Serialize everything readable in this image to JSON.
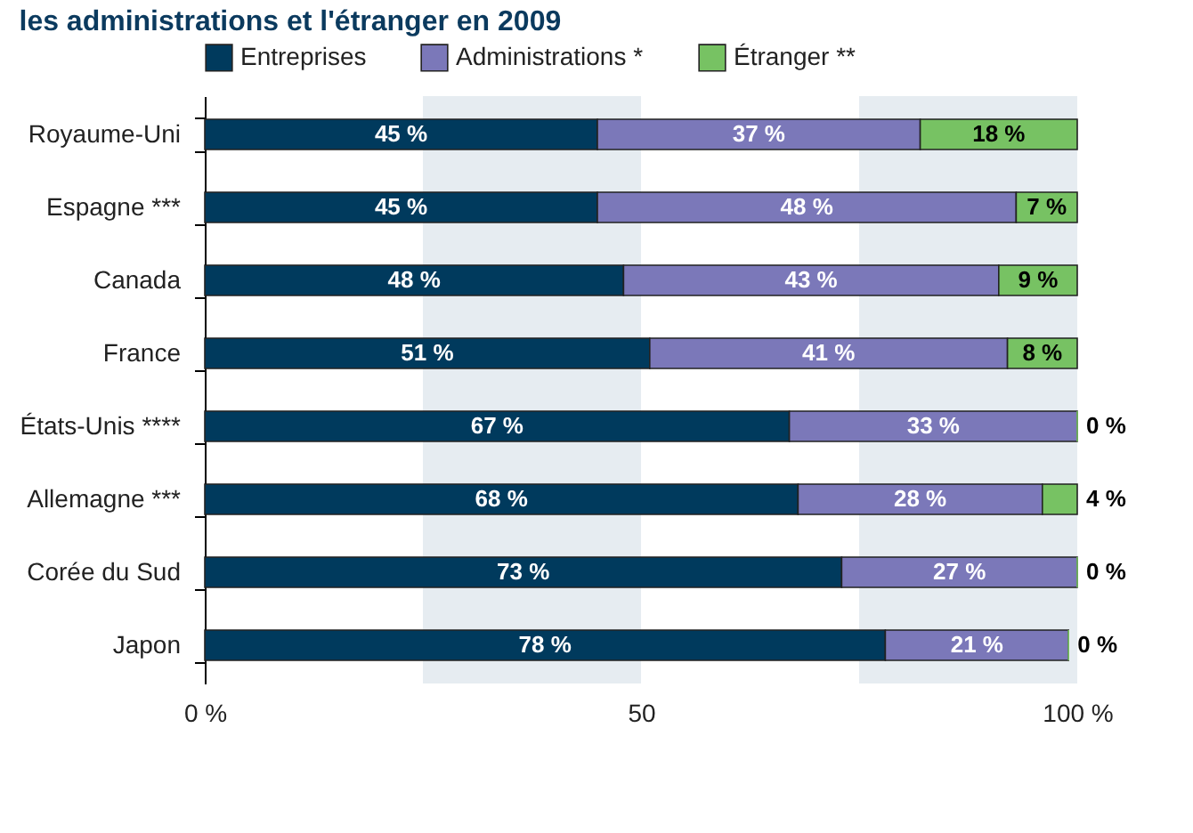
{
  "chart_data": {
    "type": "bar",
    "orientation": "horizontal",
    "stacked": true,
    "title": "les administrations et l'étranger en 2009",
    "categories": [
      "Royaume-Uni",
      "Espagne ***",
      "Canada",
      "France",
      "États-Unis ****",
      "Allemagne ***",
      "Corée du Sud",
      "Japon"
    ],
    "series": [
      {
        "name": "Entreprises",
        "color": "#003a5d",
        "values": [
          45,
          45,
          48,
          51,
          67,
          68,
          73,
          78
        ],
        "value_labels": [
          "45 %",
          "45 %",
          "48 %",
          "51 %",
          "67 %",
          "68 %",
          "73 %",
          "78 %"
        ]
      },
      {
        "name": "Administrations *",
        "color": "#7b78b9",
        "values": [
          37,
          48,
          43,
          41,
          33,
          28,
          27,
          21
        ],
        "value_labels": [
          "37 %",
          "48 %",
          "43 %",
          "41 %",
          "33 %",
          "28 %",
          "27 %",
          "21 %"
        ]
      },
      {
        "name": "Étranger **",
        "color": "#77c263",
        "values": [
          18,
          7,
          9,
          8,
          0,
          4,
          0,
          0
        ],
        "value_labels": [
          "18 %",
          "7 %",
          "9 %",
          "8 %",
          "0 %",
          "4 %",
          "0 %",
          "0 %"
        ]
      }
    ],
    "xlim": [
      0,
      100
    ],
    "xticks": [
      {
        "value": 0,
        "label": "0 %"
      },
      50,
      {
        "value": 100,
        "label": "100 %"
      }
    ],
    "bands": [
      {
        "axis": "x",
        "from": 25,
        "to": 50,
        "color": "#e6ecf1"
      },
      {
        "axis": "x",
        "from": 75,
        "to": 100,
        "color": "#e6ecf1"
      }
    ],
    "legend": "top"
  }
}
